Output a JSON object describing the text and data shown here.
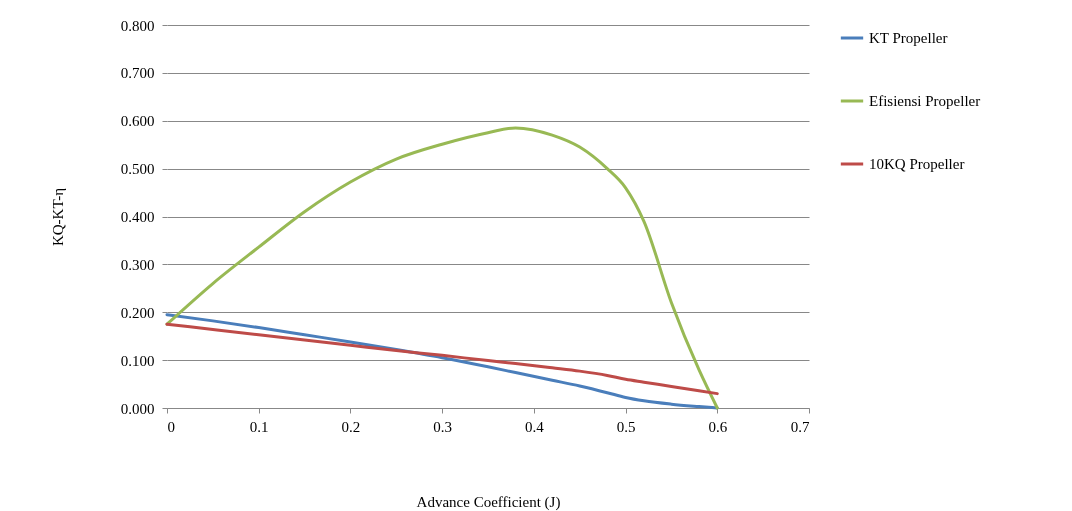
{
  "chart_data": {
    "type": "line",
    "xlabel": "Advance Coefficient  (J)",
    "ylabel": "KQ-KT-η",
    "x": [
      0,
      0.05,
      0.1,
      0.15,
      0.2,
      0.25,
      0.3,
      0.35,
      0.38,
      0.42,
      0.45,
      0.48,
      0.5,
      0.52,
      0.55,
      0.58,
      0.6
    ],
    "series": [
      {
        "name": "KT Propeller",
        "color": "#4a7ebb",
        "values": [
          0.195,
          0.182,
          0.168,
          0.153,
          0.138,
          0.122,
          0.105,
          0.086,
          0.074,
          0.058,
          0.046,
          0.032,
          0.022,
          0.015,
          0.008,
          0.003,
          0
        ]
      },
      {
        "name": "Efisiensi Propeller",
        "color": "#98b954",
        "values": [
          0.175,
          0.26,
          0.336,
          0.41,
          0.472,
          0.52,
          0.551,
          0.575,
          0.585,
          0.57,
          0.545,
          0.5,
          0.46,
          0.39,
          0.22,
          0.08,
          0
        ]
      },
      {
        "name": "10KQ Propeller",
        "color": "#be4b48",
        "values": [
          0.175,
          0.164,
          0.153,
          0.142,
          0.131,
          0.12,
          0.11,
          0.099,
          0.093,
          0.084,
          0.077,
          0.068,
          0.06,
          0.054,
          0.045,
          0.036,
          0.03
        ]
      }
    ],
    "xlim": [
      0,
      0.7
    ],
    "xticks": [
      0,
      0.1,
      0.2,
      0.3,
      0.4,
      0.5,
      0.6,
      0.7
    ],
    "ylim": [
      0,
      0.8
    ],
    "yticks": [
      {
        "value": 0,
        "label": "0.000"
      },
      {
        "value": 0.1,
        "label": "0.100"
      },
      {
        "value": 0.2,
        "label": "0.200"
      },
      {
        "value": 0.3,
        "label": "0.300"
      },
      {
        "value": 0.4,
        "label": "0.400"
      },
      {
        "value": 0.5,
        "label": "0.500"
      },
      {
        "value": 0.6,
        "label": "0.600"
      },
      {
        "value": 0.7,
        "label": "0.700"
      },
      {
        "value": 0.8,
        "label": "0.800"
      }
    ],
    "grid": "y",
    "legend": "right",
    "marker": "none",
    "line_style": "solid"
  }
}
